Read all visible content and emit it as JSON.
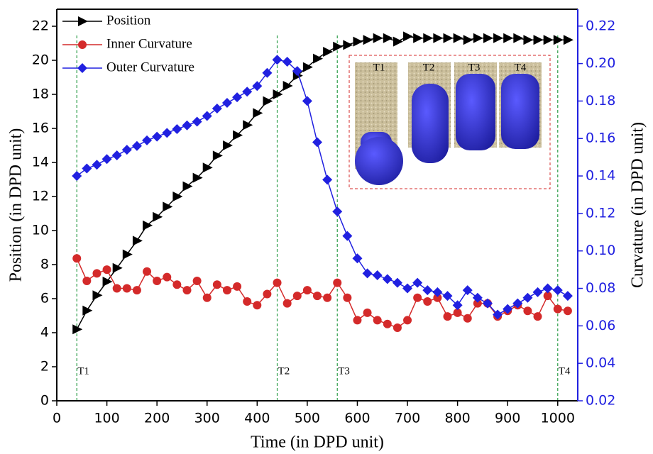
{
  "chart_data": {
    "type": "line",
    "xlabel": "Time (in DPD unit)",
    "ylabel": "Position (in DPD unit)",
    "y2label": "Curvature (in DPD unit)",
    "xlim": [
      0,
      1040
    ],
    "ylim": [
      0,
      23
    ],
    "y2lim": [
      0.02,
      0.229
    ],
    "xticks": [
      0,
      100,
      200,
      300,
      400,
      500,
      600,
      700,
      800,
      900,
      1000
    ],
    "yticks": [
      0,
      2,
      4,
      6,
      8,
      10,
      12,
      14,
      16,
      18,
      20,
      22
    ],
    "y2ticks": [
      0.02,
      0.04,
      0.06,
      0.08,
      {
        "value": 0.1,
        "label": "0.10"
      },
      0.12,
      0.14,
      0.16,
      0.18,
      {
        "value": 0.2,
        "label": "0.20"
      },
      0.22
    ],
    "legend": "upper left",
    "x": [
      40,
      60,
      80,
      100,
      120,
      140,
      160,
      180,
      200,
      220,
      240,
      260,
      280,
      300,
      320,
      340,
      360,
      380,
      400,
      420,
      440,
      460,
      480,
      500,
      520,
      540,
      560,
      580,
      600,
      620,
      640,
      660,
      680,
      700,
      720,
      740,
      760,
      780,
      800,
      820,
      840,
      860,
      880,
      900,
      920,
      940,
      960,
      980,
      1000,
      1020
    ],
    "series": [
      {
        "name": "Position",
        "color": "#000000",
        "marker": "triangle",
        "axis": "y",
        "values": [
          4.2,
          5.3,
          6.2,
          7.0,
          7.8,
          8.6,
          9.4,
          10.3,
          10.8,
          11.4,
          12.0,
          12.6,
          13.1,
          13.7,
          14.4,
          15.0,
          15.6,
          16.2,
          16.9,
          17.6,
          18.0,
          18.5,
          19.1,
          19.6,
          20.1,
          20.5,
          20.8,
          20.9,
          21.1,
          21.2,
          21.3,
          21.3,
          21.1,
          21.4,
          21.3,
          21.3,
          21.3,
          21.3,
          21.3,
          21.2,
          21.3,
          21.3,
          21.3,
          21.3,
          21.3,
          21.2,
          21.2,
          21.2,
          21.2,
          21.2
        ]
      },
      {
        "name": "Inner Curvature",
        "color": "#d42a2a",
        "marker": "circle",
        "axis": "y2",
        "values": [
          0.096,
          0.084,
          0.088,
          0.09,
          0.08,
          0.08,
          0.079,
          0.089,
          0.084,
          0.086,
          0.082,
          0.079,
          0.084,
          0.075,
          0.082,
          0.079,
          0.081,
          0.073,
          0.071,
          0.077,
          0.083,
          0.072,
          0.076,
          0.079,
          0.076,
          0.075,
          0.083,
          0.075,
          0.063,
          0.067,
          0.063,
          0.061,
          0.059,
          0.063,
          0.075,
          0.073,
          0.075,
          0.065,
          0.067,
          0.064,
          0.072,
          0.072,
          0.065,
          0.068,
          0.071,
          0.068,
          0.065,
          0.076,
          0.069,
          0.068
        ]
      },
      {
        "name": "Outer Curvature",
        "color": "#2020e0",
        "marker": "diamond",
        "axis": "y2",
        "values": [
          0.14,
          0.144,
          0.146,
          0.149,
          0.151,
          0.154,
          0.156,
          0.159,
          0.161,
          0.163,
          0.165,
          0.167,
          0.169,
          0.172,
          0.176,
          0.179,
          0.182,
          0.185,
          0.188,
          0.195,
          0.202,
          0.201,
          0.196,
          0.18,
          0.158,
          0.138,
          0.121,
          0.108,
          0.096,
          0.088,
          0.087,
          0.085,
          0.083,
          0.08,
          0.083,
          0.079,
          0.078,
          0.076,
          0.071,
          0.079,
          0.075,
          0.072,
          0.066,
          0.069,
          0.072,
          0.075,
          0.078,
          0.08,
          0.079,
          0.076
        ]
      }
    ],
    "annotations": [
      {
        "x": 40,
        "label": "T1"
      },
      {
        "x": 440,
        "label": "T2"
      },
      {
        "x": 560,
        "label": "T3"
      },
      {
        "x": 1000,
        "label": "T4"
      }
    ],
    "inset_labels": [
      "T1",
      "T2",
      "T3",
      "T4"
    ]
  }
}
